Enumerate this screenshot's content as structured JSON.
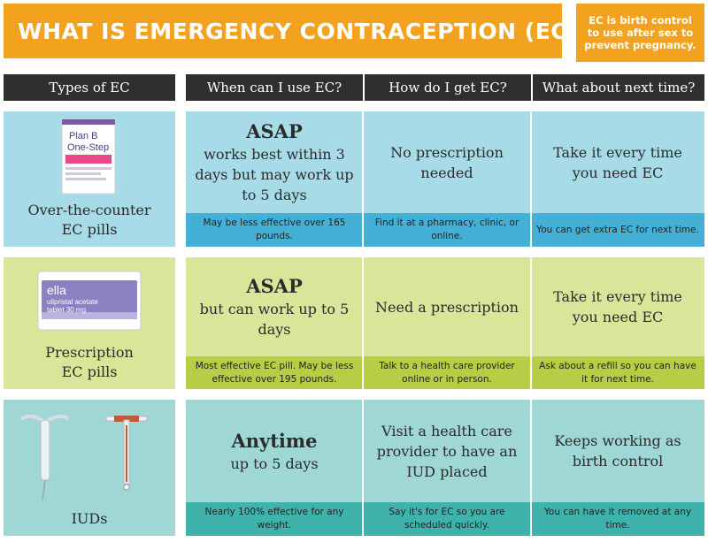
{
  "title": "WHAT IS EMERGENCY CONTRACEPTION (EC)?",
  "title_note": "EC is birth control to use after sex to prevent pregnancy.",
  "headers": [
    "Types of EC",
    "When can I use EC?",
    "How do I get EC?",
    "What about next time?"
  ],
  "rows": [
    {
      "type_label_1": "Over-the-counter",
      "type_label_2": "EC pills",
      "box_text_1": "Plan B",
      "box_text_2": "One-Step",
      "when_big": "ASAP",
      "when_text": "works best within 3 days but may work up to 5 days",
      "how_text": "No prescription needed",
      "next_text": "Take it every time you need EC",
      "when_note": "May be less effective over 165 pounds.",
      "how_note": "Find it at a pharmacy, clinic, or online.",
      "next_note": "You can get extra EC for next time."
    },
    {
      "type_label_1": "Prescription",
      "type_label_2": "EC pills",
      "box_text_1": "ella",
      "box_text_2": "ulipristal acetate",
      "box_text_3": "tablet 30 mg",
      "when_big": "ASAP",
      "when_text": "but can work up to 5 days",
      "how_text": "Need a prescription",
      "next_text": "Take it every time you need EC",
      "when_note": "Most effective EC pill. May be less effective over 195 pounds.",
      "how_note": "Talk to a health care provider online or in person.",
      "next_note": "Ask about a refill so you can have it for next time."
    },
    {
      "type_label_1": "IUDs",
      "when_big": "Anytime",
      "when_text": "up to 5 days",
      "how_text": "Visit a health care provider to have an IUD placed",
      "next_text": "Keeps working as birth control",
      "when_note": "Nearly 100% effective for any weight.",
      "how_note": "Say it's for EC so you are scheduled quickly.",
      "next_note": "You can have it removed at any time."
    }
  ],
  "colors": {
    "orange": "#f2a21f",
    "header_dark": "#2f2f2f",
    "row1_light": "#a7dbe8",
    "row1_dark": "#45b0d6",
    "row2_light": "#dbe59a",
    "row2_dark": "#b7cd45",
    "row3_light": "#9fd7d5",
    "row3_dark": "#3fb3ab"
  }
}
